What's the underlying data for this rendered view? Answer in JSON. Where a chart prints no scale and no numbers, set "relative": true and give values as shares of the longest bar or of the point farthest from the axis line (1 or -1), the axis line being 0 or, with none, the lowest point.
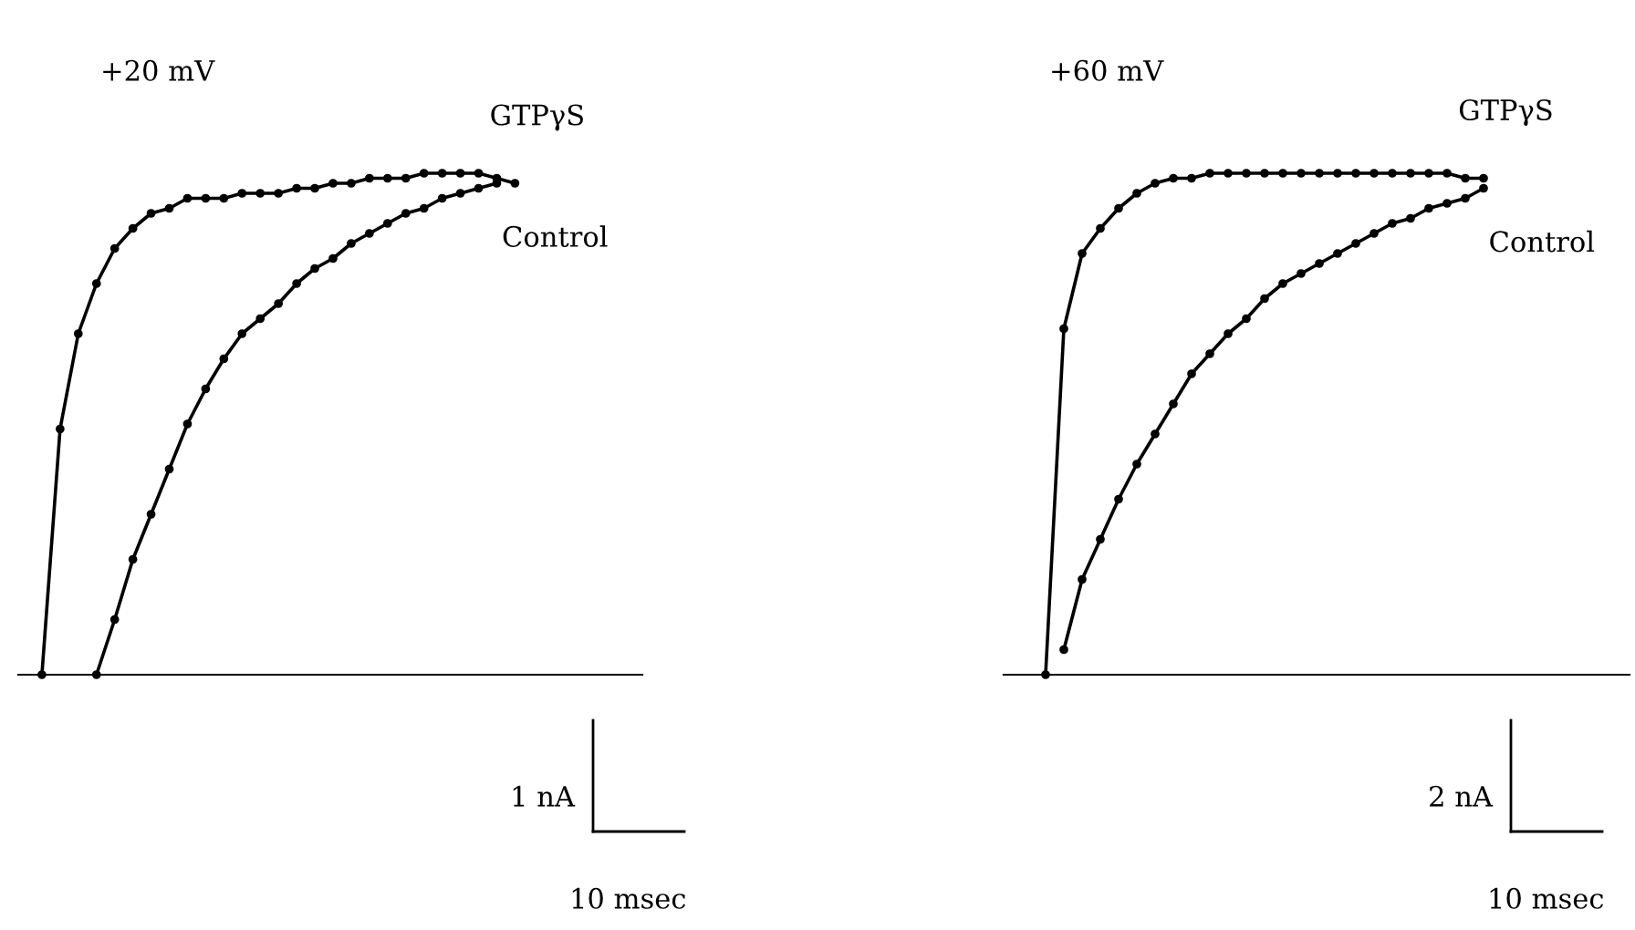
{
  "chart_data": [
    {
      "type": "line",
      "title": "+20 mV",
      "relative": true,
      "marker": "circle",
      "annotations": [
        "1 nA",
        "10 msec"
      ],
      "categories": [
        null,
        null,
        null,
        null,
        null,
        null,
        null,
        null,
        null,
        null,
        null,
        null,
        null,
        null,
        null,
        null,
        null,
        null,
        null,
        null,
        null,
        null,
        null,
        null,
        null,
        null,
        null,
        null,
        null,
        null,
        null,
        null,
        null,
        null,
        null
      ],
      "series": [
        {
          "name": "GTPγS",
          "color": "#000000",
          "values": [
            null,
            0,
            0.49,
            0.68,
            0.78,
            0.85,
            0.89,
            0.92,
            0.93,
            0.95,
            0.95,
            0.95,
            0.96,
            0.96,
            0.96,
            0.97,
            0.97,
            0.98,
            0.98,
            0.99,
            0.99,
            0.99,
            1.0,
            1.0,
            1.0,
            1.0,
            0.99,
            0.98,
            null,
            null,
            null,
            null,
            null,
            null,
            null
          ]
        },
        {
          "name": "Control",
          "color": "#000000",
          "values": [
            null,
            null,
            null,
            null,
            0,
            0.11,
            0.23,
            0.32,
            0.41,
            0.5,
            0.57,
            0.63,
            0.68,
            0.71,
            0.74,
            0.78,
            0.81,
            0.83,
            0.86,
            0.88,
            0.9,
            0.92,
            0.93,
            0.95,
            0.96,
            0.97,
            0.98,
            null,
            null,
            null,
            null,
            null,
            null,
            null,
            null
          ]
        }
      ]
    },
    {
      "type": "line",
      "title": "+60 mV",
      "relative": true,
      "marker": "circle",
      "annotations": [
        "2 nA",
        "10 msec"
      ],
      "categories": [
        null,
        null,
        null,
        null,
        null,
        null,
        null,
        null,
        null,
        null,
        null,
        null,
        null,
        null,
        null,
        null,
        null,
        null,
        null,
        null,
        null,
        null,
        null,
        null,
        null,
        null,
        null,
        null,
        null,
        null,
        null,
        null,
        null,
        null,
        null
      ],
      "series": [
        {
          "name": "GTPγS",
          "color": "#000000",
          "values": [
            null,
            null,
            0,
            0.69,
            0.84,
            0.89,
            0.93,
            0.96,
            0.98,
            0.99,
            0.99,
            1.0,
            1.0,
            1.0,
            1.0,
            1.0,
            1.0,
            1.0,
            1.0,
            1.0,
            1.0,
            1.0,
            1.0,
            1.0,
            1.0,
            0.99,
            0.99,
            null,
            null,
            null,
            null,
            null,
            null,
            null,
            null
          ]
        },
        {
          "name": "Control",
          "color": "#000000",
          "values": [
            null,
            null,
            null,
            0.05,
            0.19,
            0.27,
            0.35,
            0.42,
            0.48,
            0.54,
            0.6,
            0.64,
            0.68,
            0.71,
            0.75,
            0.78,
            0.8,
            0.82,
            0.84,
            0.86,
            0.88,
            0.9,
            0.91,
            0.93,
            0.94,
            0.95,
            0.97,
            null,
            null,
            null,
            null,
            null,
            null,
            null,
            null
          ]
        }
      ]
    }
  ]
}
